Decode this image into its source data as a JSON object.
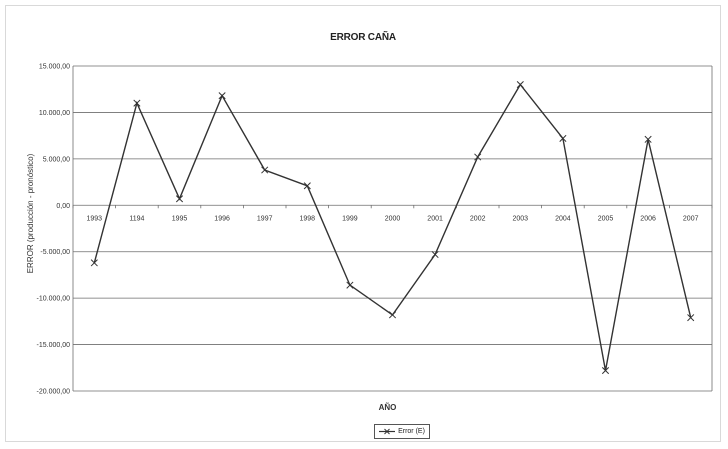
{
  "chart_data": {
    "type": "line",
    "title": "ERROR CAÑA",
    "xlabel": "AÑO",
    "ylabel": "ERROR (producción - pronóstico)",
    "categories": [
      "1993",
      "1194",
      "1995",
      "1996",
      "1997",
      "1998",
      "1999",
      "2000",
      "2001",
      "2002",
      "2003",
      "2004",
      "2005",
      "2006",
      "2007"
    ],
    "series": [
      {
        "name": "Error (E)",
        "color": "#333333",
        "marker": "x",
        "values": [
          -6200,
          11000,
          700,
          11800,
          3800,
          2100,
          -8600,
          -11800,
          -5300,
          5200,
          13000,
          7200,
          -17800,
          7100,
          -12100
        ]
      }
    ],
    "ylim": [
      -20000,
      15000
    ],
    "yticks": [
      15000,
      10000,
      5000,
      0,
      -5000,
      -10000,
      -15000,
      -20000
    ],
    "ytick_labels": [
      "15.000,00",
      "10.000,00",
      "5.000,00",
      "0,00",
      "-5.000,00",
      "-10.000,00",
      "-15.000,00",
      "-20.000,00"
    ],
    "grid": true,
    "legend_position": "bottom"
  }
}
